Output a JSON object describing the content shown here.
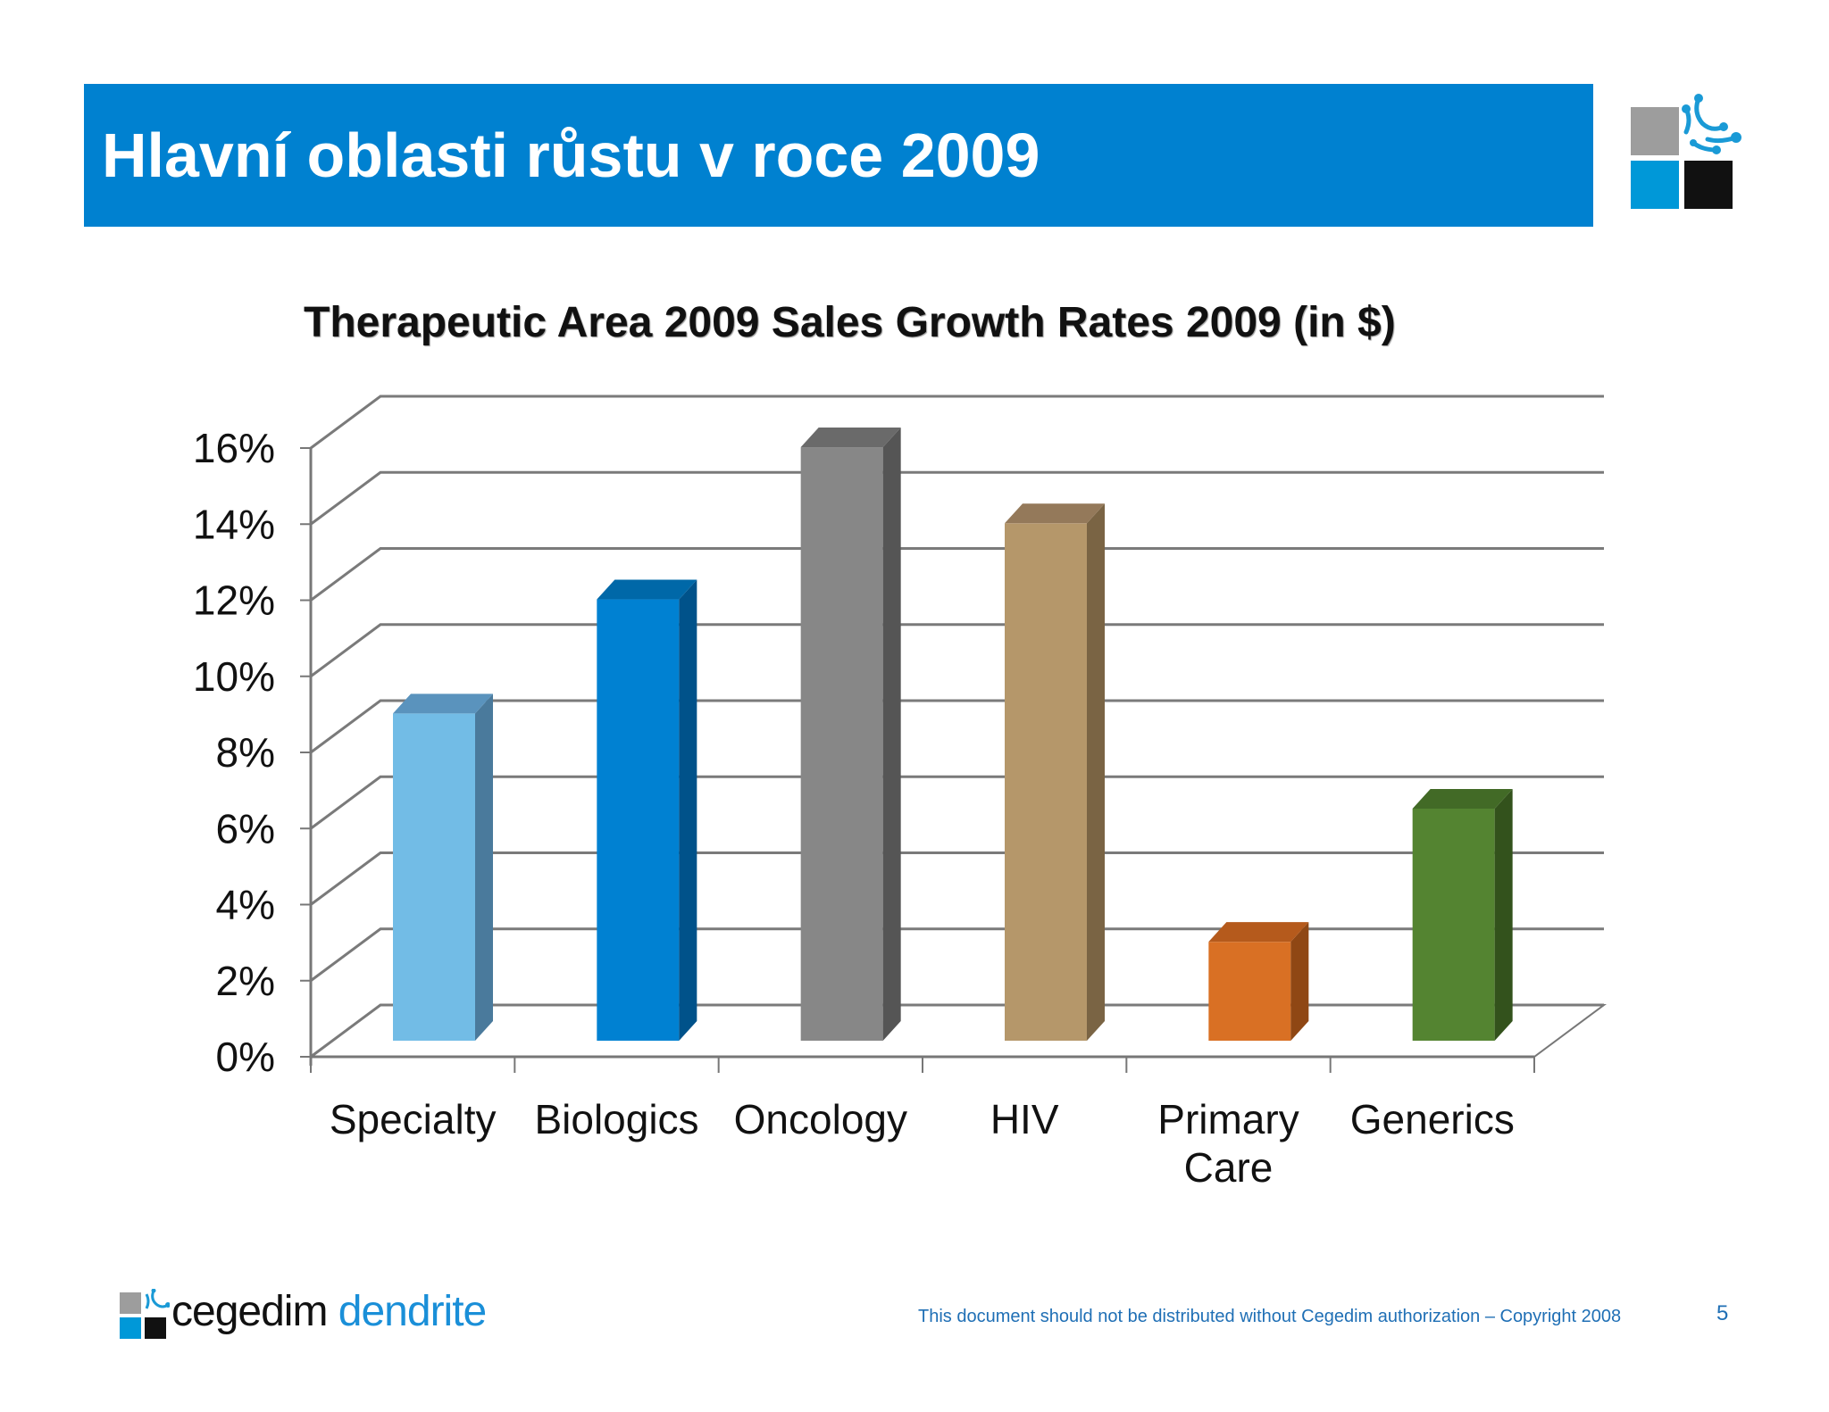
{
  "header": {
    "title": "Hlavní oblasti růstu v roce 2009"
  },
  "chart_data": {
    "type": "bar",
    "title": "Therapeutic Area 2009 Sales Growth Rates 2009 (in $)",
    "xlabel": "",
    "ylabel": "",
    "categories": [
      "Specialty",
      "Biologics",
      "Oncology",
      "HIV",
      "Primary Care",
      "Generics"
    ],
    "category_lines": [
      [
        "Specialty"
      ],
      [
        "Biologics"
      ],
      [
        "Oncology"
      ],
      [
        "HIV"
      ],
      [
        "Primary",
        "Care"
      ],
      [
        "Generics"
      ]
    ],
    "values": [
      8.6,
      11.6,
      15.6,
      13.6,
      2.6,
      6.1
    ],
    "ylim": [
      0,
      16
    ],
    "ytick_values": [
      0,
      2,
      4,
      6,
      8,
      10,
      12,
      14,
      16
    ],
    "ytick_labels": [
      "0%",
      "2%",
      "4%",
      "6%",
      "8%",
      "10%",
      "12%",
      "14%",
      "16%"
    ],
    "grid": true,
    "legend": "none",
    "colors": [
      {
        "front": "#72bce6",
        "side": "#4a7a9c",
        "top": "#5a93bd"
      },
      {
        "front": "#0081d2",
        "side": "#00528a",
        "top": "#0068a8"
      },
      {
        "front": "#878787",
        "side": "#555555",
        "top": "#6a6a6a"
      },
      {
        "front": "#b5976a",
        "side": "#7a6444",
        "top": "#94795a"
      },
      {
        "front": "#d97024",
        "side": "#8f4714",
        "top": "#b55a1c"
      },
      {
        "front": "#548431",
        "side": "#33521c",
        "top": "#426a26"
      }
    ]
  },
  "footer": {
    "brand_part1": "cegedim",
    "brand_part2": "dendrite",
    "copyright": "This document should not be distributed without Cegedim authorization – Copyright 2008",
    "page_number": "5"
  }
}
